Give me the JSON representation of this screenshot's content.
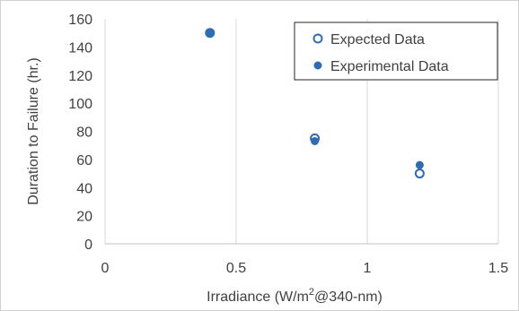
{
  "chart_data": {
    "type": "scatter",
    "title": "",
    "xlabel": "Irradiance (W/m²@340-nm)",
    "xlabel_parts": {
      "pre": "Irradiance (W/m",
      "sup": "2",
      "post": "@340-nm)"
    },
    "ylabel": "Duration to Failure (hr.)",
    "xlim": [
      0,
      1.5
    ],
    "ylim": [
      0,
      160
    ],
    "xticks": [
      0,
      0.5,
      1,
      1.5
    ],
    "xtick_labels": [
      "0",
      "0.5",
      "1",
      "1.5"
    ],
    "yticks": [
      0,
      20,
      40,
      60,
      80,
      100,
      120,
      140,
      160
    ],
    "ytick_labels": [
      "0",
      "20",
      "40",
      "60",
      "80",
      "100",
      "120",
      "140",
      "160"
    ],
    "grid": "vertical",
    "legend_position": "top-right",
    "series": [
      {
        "name": "Expected Data",
        "marker": "hollow-circle",
        "color": "#2e6db4",
        "x": [
          0.4,
          0.8,
          1.2
        ],
        "y": [
          150,
          75,
          50
        ]
      },
      {
        "name": "Experimental Data",
        "marker": "filled-circle",
        "color": "#2e6db4",
        "x": [
          0.4,
          0.8,
          1.2
        ],
        "y": [
          150,
          73,
          56
        ]
      }
    ]
  }
}
